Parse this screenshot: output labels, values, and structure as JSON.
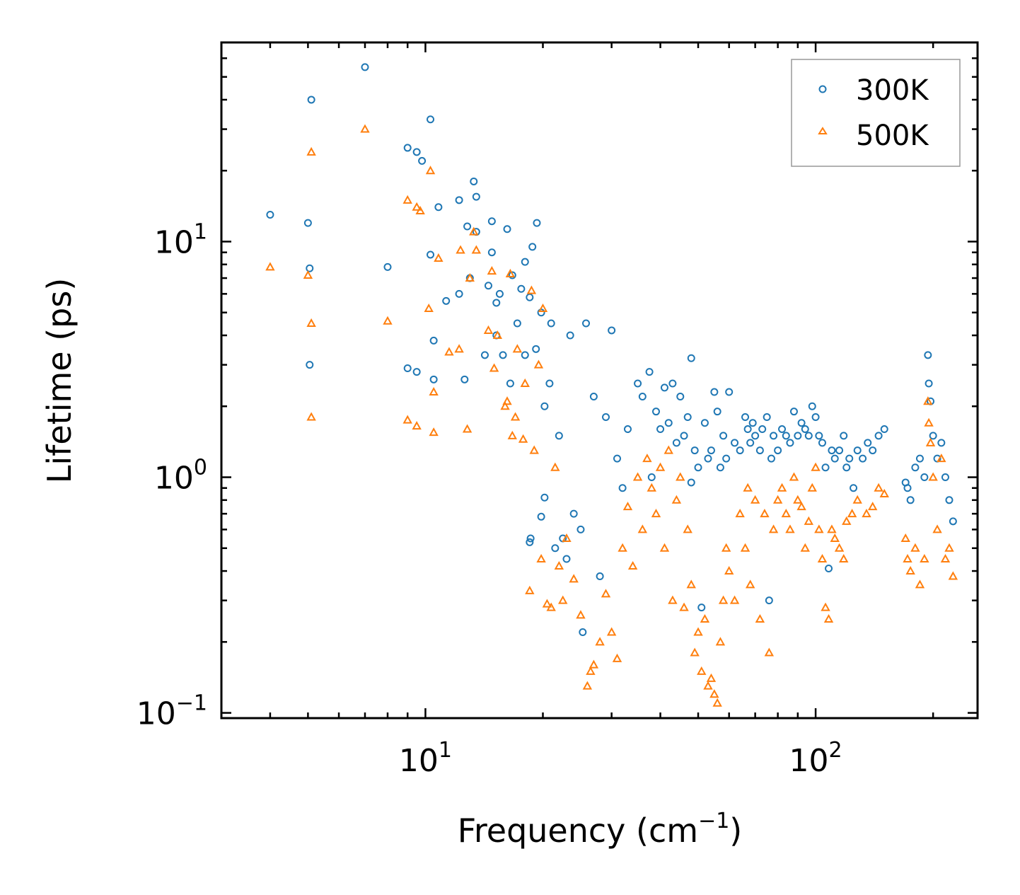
{
  "chart_data": {
    "type": "scatter",
    "title": "",
    "xlabel": "Frequency (cm",
    "xlabel_sup": "−1",
    "xlabel_end": ")",
    "ylabel": "Lifetime (ps)",
    "xscale": "log",
    "yscale": "log",
    "xlim": [
      3.0,
      260
    ],
    "ylim": [
      0.095,
      70
    ],
    "x_ticks": [
      {
        "base": "10",
        "exp": "1",
        "value": 10
      },
      {
        "base": "10",
        "exp": "2",
        "value": 100
      }
    ],
    "y_ticks": [
      {
        "base": "10",
        "exp": "−1",
        "value": 0.1
      },
      {
        "base": "10",
        "exp": "0",
        "value": 1
      },
      {
        "base": "10",
        "exp": "1",
        "value": 10
      }
    ],
    "legend_position": "top-right",
    "series": [
      {
        "name": "300K",
        "marker": "circle",
        "color": "#1f77b4",
        "points": [
          [
            4.0,
            13.0
          ],
          [
            5.0,
            12.0
          ],
          [
            5.05,
            7.7
          ],
          [
            5.05,
            3.0
          ],
          [
            5.1,
            40
          ],
          [
            7.0,
            55
          ],
          [
            8.0,
            7.8
          ],
          [
            9.0,
            2.9
          ],
          [
            9.0,
            25
          ],
          [
            9.5,
            24
          ],
          [
            9.5,
            2.8
          ],
          [
            9.8,
            22
          ],
          [
            10.3,
            33
          ],
          [
            10.3,
            8.8
          ],
          [
            10.5,
            2.6
          ],
          [
            10.5,
            3.8
          ],
          [
            10.8,
            14.0
          ],
          [
            11.3,
            5.6
          ],
          [
            12.2,
            6.0
          ],
          [
            12.2,
            15.0
          ],
          [
            12.6,
            2.6
          ],
          [
            12.8,
            11.6
          ],
          [
            13.0,
            7.0
          ],
          [
            13.3,
            18.0
          ],
          [
            13.5,
            15.5
          ],
          [
            13.5,
            11.0
          ],
          [
            14.2,
            3.3
          ],
          [
            14.5,
            6.5
          ],
          [
            14.8,
            9.0
          ],
          [
            14.8,
            12.2
          ],
          [
            15.2,
            4.0
          ],
          [
            15.2,
            5.5
          ],
          [
            15.5,
            6.0
          ],
          [
            15.8,
            3.3
          ],
          [
            16.2,
            11.3
          ],
          [
            16.5,
            2.5
          ],
          [
            16.7,
            7.2
          ],
          [
            17.2,
            4.5
          ],
          [
            17.6,
            6.3
          ],
          [
            18.0,
            8.2
          ],
          [
            18.0,
            3.3
          ],
          [
            18.5,
            5.8
          ],
          [
            18.5,
            0.53
          ],
          [
            18.6,
            0.55
          ],
          [
            18.8,
            9.5
          ],
          [
            19.2,
            3.5
          ],
          [
            19.3,
            12.0
          ],
          [
            19.8,
            0.68
          ],
          [
            19.8,
            5.0
          ],
          [
            20.2,
            0.82
          ],
          [
            20.2,
            2.0
          ],
          [
            20.8,
            2.5
          ],
          [
            21.0,
            4.5
          ],
          [
            21.5,
            0.5
          ],
          [
            22.0,
            1.5
          ],
          [
            22.5,
            0.55
          ],
          [
            23.0,
            0.45
          ],
          [
            23.5,
            4.0
          ],
          [
            24.0,
            0.7
          ],
          [
            25.0,
            0.6
          ],
          [
            25.3,
            0.22
          ],
          [
            25.8,
            4.5
          ],
          [
            27.0,
            2.2
          ],
          [
            28.0,
            0.38
          ],
          [
            29.0,
            1.8
          ],
          [
            30.0,
            4.2
          ],
          [
            31.0,
            1.2
          ],
          [
            32.0,
            0.9
          ],
          [
            33.0,
            1.6
          ],
          [
            35.0,
            2.5
          ],
          [
            36.0,
            2.2
          ],
          [
            37.5,
            2.8
          ],
          [
            38.0,
            1.0
          ],
          [
            39.0,
            1.9
          ],
          [
            40.0,
            1.6
          ],
          [
            41.0,
            2.4
          ],
          [
            42.0,
            1.7
          ],
          [
            43.0,
            2.5
          ],
          [
            44.0,
            1.4
          ],
          [
            45.0,
            2.2
          ],
          [
            46.0,
            1.5
          ],
          [
            47.0,
            1.8
          ],
          [
            48.0,
            3.2
          ],
          [
            48.0,
            0.95
          ],
          [
            49.0,
            1.3
          ],
          [
            50.0,
            1.1
          ],
          [
            51.0,
            0.28
          ],
          [
            52.0,
            1.7
          ],
          [
            53.0,
            1.2
          ],
          [
            54.0,
            1.3
          ],
          [
            55.0,
            2.3
          ],
          [
            56.0,
            1.9
          ],
          [
            57.0,
            1.1
          ],
          [
            58.0,
            1.5
          ],
          [
            59.0,
            1.2
          ],
          [
            60.0,
            2.3
          ],
          [
            62.0,
            1.4
          ],
          [
            64.0,
            1.3
          ],
          [
            66.0,
            1.8
          ],
          [
            67.0,
            1.6
          ],
          [
            68.0,
            1.4
          ],
          [
            69.0,
            1.7
          ],
          [
            70.0,
            1.5
          ],
          [
            72.0,
            1.3
          ],
          [
            73.0,
            1.6
          ],
          [
            75.0,
            1.8
          ],
          [
            76.0,
            0.3
          ],
          [
            77.0,
            1.2
          ],
          [
            78.0,
            1.5
          ],
          [
            80.0,
            1.3
          ],
          [
            82.0,
            1.6
          ],
          [
            84.0,
            1.5
          ],
          [
            86.0,
            1.4
          ],
          [
            88.0,
            1.9
          ],
          [
            90.0,
            1.5
          ],
          [
            92.0,
            1.7
          ],
          [
            94.0,
            1.6
          ],
          [
            96.0,
            1.5
          ],
          [
            98.0,
            2.0
          ],
          [
            100.0,
            1.8
          ],
          [
            102.0,
            1.5
          ],
          [
            104.0,
            1.4
          ],
          [
            106.0,
            1.1
          ],
          [
            108.0,
            0.41
          ],
          [
            110.0,
            1.3
          ],
          [
            112.0,
            1.2
          ],
          [
            115.0,
            1.3
          ],
          [
            118.0,
            1.5
          ],
          [
            120.0,
            1.1
          ],
          [
            122.0,
            1.2
          ],
          [
            125.0,
            0.9
          ],
          [
            128.0,
            1.3
          ],
          [
            132.0,
            1.2
          ],
          [
            136.0,
            1.4
          ],
          [
            140.0,
            1.3
          ],
          [
            145.0,
            1.5
          ],
          [
            150.0,
            1.6
          ],
          [
            170.0,
            0.95
          ],
          [
            172.0,
            0.9
          ],
          [
            175.0,
            0.8
          ],
          [
            180.0,
            1.1
          ],
          [
            185.0,
            1.2
          ],
          [
            190.0,
            1.0
          ],
          [
            194.0,
            3.3
          ],
          [
            195.0,
            2.5
          ],
          [
            197.0,
            2.1
          ],
          [
            200.0,
            1.5
          ],
          [
            205.0,
            1.2
          ],
          [
            210.0,
            1.4
          ],
          [
            215.0,
            1.0
          ],
          [
            220.0,
            0.8
          ],
          [
            225.0,
            0.65
          ]
        ]
      },
      {
        "name": "500K",
        "marker": "triangle",
        "color": "#ff7f0e",
        "points": [
          [
            4.0,
            7.8
          ],
          [
            5.0,
            7.2
          ],
          [
            5.1,
            4.5
          ],
          [
            5.1,
            1.8
          ],
          [
            5.1,
            24
          ],
          [
            7.0,
            30
          ],
          [
            8.0,
            4.6
          ],
          [
            9.0,
            15.0
          ],
          [
            9.0,
            1.75
          ],
          [
            9.5,
            14.0
          ],
          [
            9.5,
            1.65
          ],
          [
            9.7,
            13.5
          ],
          [
            10.2,
            5.2
          ],
          [
            10.3,
            20
          ],
          [
            10.5,
            2.3
          ],
          [
            10.5,
            1.55
          ],
          [
            10.8,
            8.5
          ],
          [
            11.5,
            3.4
          ],
          [
            12.2,
            3.5
          ],
          [
            12.3,
            9.2
          ],
          [
            12.8,
            1.6
          ],
          [
            13.0,
            7.0
          ],
          [
            13.3,
            11.0
          ],
          [
            13.5,
            9.2
          ],
          [
            14.5,
            4.2
          ],
          [
            14.8,
            7.5
          ],
          [
            15.0,
            2.9
          ],
          [
            15.3,
            4.0
          ],
          [
            16.0,
            2.0
          ],
          [
            16.2,
            2.1
          ],
          [
            16.5,
            7.3
          ],
          [
            16.7,
            1.5
          ],
          [
            17.0,
            1.8
          ],
          [
            17.2,
            3.5
          ],
          [
            17.8,
            1.45
          ],
          [
            18.0,
            2.5
          ],
          [
            18.5,
            0.33
          ],
          [
            18.7,
            6.2
          ],
          [
            19.0,
            1.3
          ],
          [
            19.5,
            3.0
          ],
          [
            19.8,
            0.45
          ],
          [
            20.0,
            5.2
          ],
          [
            20.5,
            0.29
          ],
          [
            21.0,
            0.28
          ],
          [
            21.5,
            1.1
          ],
          [
            22.0,
            0.42
          ],
          [
            22.5,
            0.3
          ],
          [
            23.0,
            0.55
          ],
          [
            24.0,
            0.37
          ],
          [
            25.0,
            0.26
          ],
          [
            26.0,
            0.13
          ],
          [
            26.5,
            0.15
          ],
          [
            27.0,
            0.16
          ],
          [
            28.0,
            0.2
          ],
          [
            29.0,
            0.32
          ],
          [
            30.0,
            0.22
          ],
          [
            31.0,
            0.17
          ],
          [
            32.0,
            0.5
          ],
          [
            33.0,
            0.75
          ],
          [
            34.0,
            0.42
          ],
          [
            35.0,
            1.0
          ],
          [
            36.0,
            0.6
          ],
          [
            37.0,
            1.2
          ],
          [
            38.0,
            0.9
          ],
          [
            39.0,
            0.7
          ],
          [
            40.0,
            1.1
          ],
          [
            41.0,
            0.5
          ],
          [
            42.0,
            1.3
          ],
          [
            43.0,
            0.3
          ],
          [
            44.0,
            0.8
          ],
          [
            45.0,
            1.0
          ],
          [
            46.0,
            0.28
          ],
          [
            47.0,
            0.6
          ],
          [
            48.0,
            0.35
          ],
          [
            49.0,
            0.18
          ],
          [
            50.0,
            0.22
          ],
          [
            51.0,
            0.15
          ],
          [
            52.0,
            0.25
          ],
          [
            53.0,
            0.13
          ],
          [
            54.0,
            0.14
          ],
          [
            55.0,
            0.12
          ],
          [
            56.0,
            0.11
          ],
          [
            57.0,
            0.2
          ],
          [
            58.0,
            0.3
          ],
          [
            59.0,
            0.5
          ],
          [
            60.0,
            0.4
          ],
          [
            62.0,
            0.3
          ],
          [
            64.0,
            0.7
          ],
          [
            66.0,
            0.5
          ],
          [
            67.0,
            0.9
          ],
          [
            68.0,
            0.35
          ],
          [
            70.0,
            0.8
          ],
          [
            72.0,
            0.25
          ],
          [
            74.0,
            0.7
          ],
          [
            76.0,
            0.18
          ],
          [
            78.0,
            0.6
          ],
          [
            80.0,
            0.8
          ],
          [
            82.0,
            0.9
          ],
          [
            84.0,
            0.7
          ],
          [
            86.0,
            0.6
          ],
          [
            88.0,
            1.0
          ],
          [
            90.0,
            0.8
          ],
          [
            92.0,
            0.75
          ],
          [
            94.0,
            0.5
          ],
          [
            96.0,
            0.65
          ],
          [
            98.0,
            0.9
          ],
          [
            100.0,
            1.1
          ],
          [
            102.0,
            0.6
          ],
          [
            104.0,
            0.45
          ],
          [
            106.0,
            0.28
          ],
          [
            108.0,
            0.25
          ],
          [
            110.0,
            0.6
          ],
          [
            112.0,
            0.55
          ],
          [
            115.0,
            0.5
          ],
          [
            118.0,
            0.45
          ],
          [
            120.0,
            0.65
          ],
          [
            124.0,
            0.7
          ],
          [
            128.0,
            0.8
          ],
          [
            135.0,
            0.7
          ],
          [
            140.0,
            0.75
          ],
          [
            145.0,
            0.9
          ],
          [
            150.0,
            0.85
          ],
          [
            170.0,
            0.55
          ],
          [
            172.0,
            0.45
          ],
          [
            175.0,
            0.4
          ],
          [
            180.0,
            0.5
          ],
          [
            185.0,
            0.35
          ],
          [
            190.0,
            0.45
          ],
          [
            194.0,
            2.1
          ],
          [
            195.0,
            1.7
          ],
          [
            197.0,
            1.4
          ],
          [
            200.0,
            1.0
          ],
          [
            205.0,
            0.6
          ],
          [
            210.0,
            1.2
          ],
          [
            215.0,
            0.45
          ],
          [
            220.0,
            0.5
          ],
          [
            225.0,
            0.38
          ]
        ]
      }
    ]
  }
}
